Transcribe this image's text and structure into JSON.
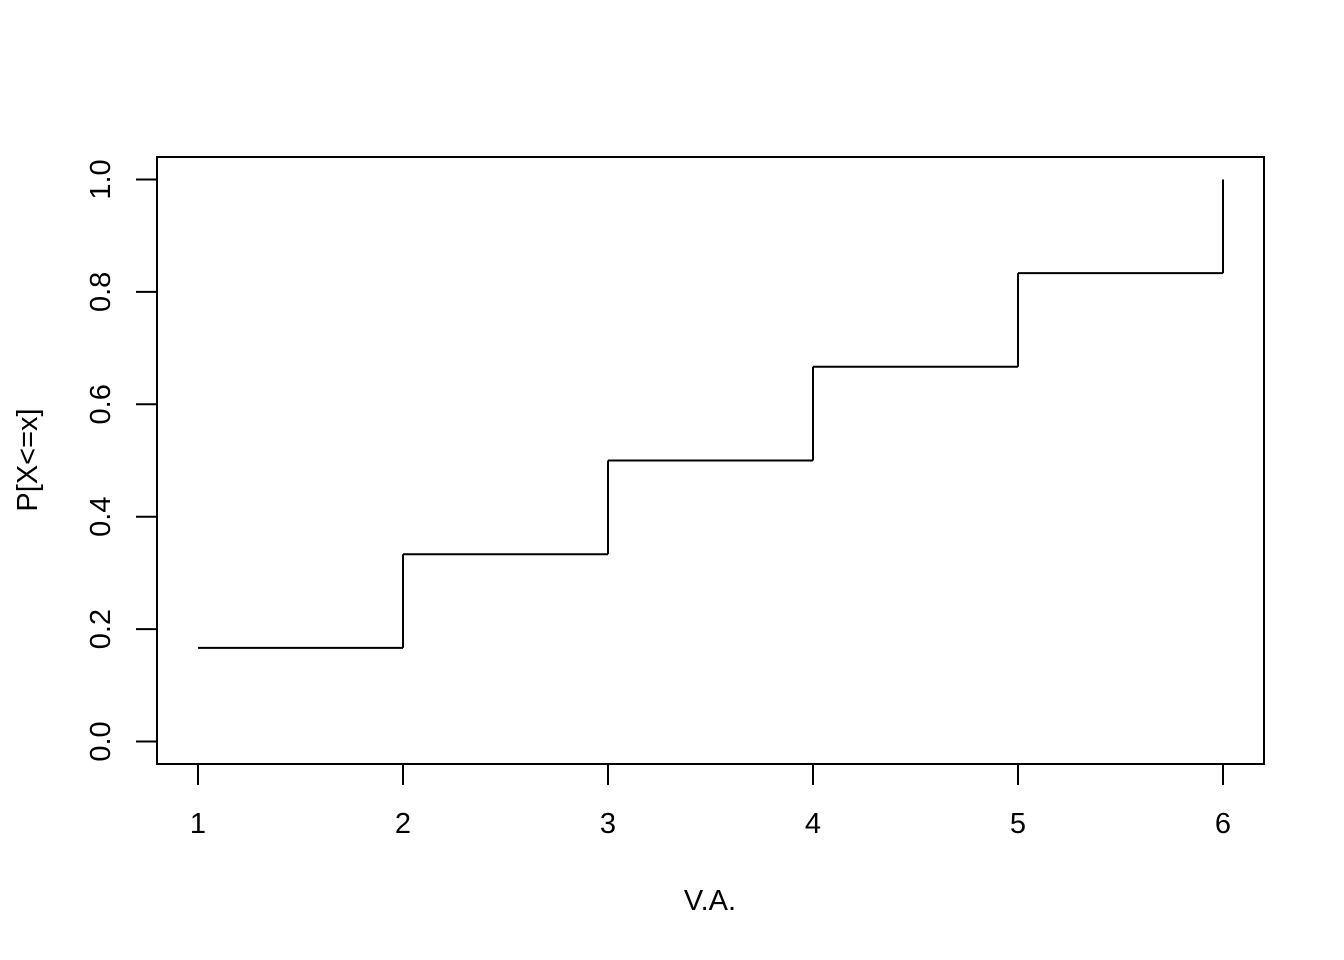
{
  "chart_data": {
    "type": "line",
    "step": "post",
    "title": "",
    "xlabel": "V.A.",
    "ylabel": "P[X<=x]",
    "x": [
      1,
      2,
      3,
      4,
      5,
      6
    ],
    "series": [
      {
        "values": [
          0.1667,
          0.3333,
          0.5,
          0.6667,
          0.8333,
          1.0
        ]
      }
    ],
    "xlim": [
      0.8,
      6.2
    ],
    "ylim": [
      -0.04,
      1.04
    ],
    "xticks": [
      "1",
      "2",
      "3",
      "4",
      "5",
      "6"
    ],
    "yticks": [
      "0.0",
      "0.2",
      "0.4",
      "0.6",
      "0.8",
      "1.0"
    ],
    "grid": false,
    "line_color": "#000000"
  }
}
